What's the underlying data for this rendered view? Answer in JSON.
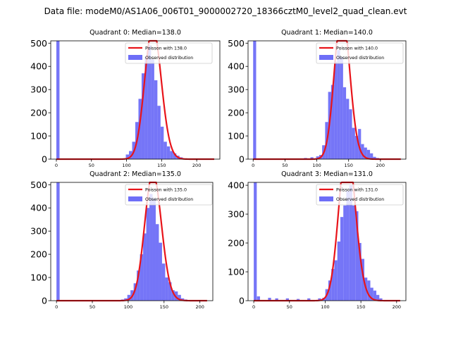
{
  "suptitle": "Data file: modeM0/AS1A06_006T01_9000002720_18366cztM0_level2_quad_clean.evt",
  "colors": {
    "histogram": "#6e6ef7",
    "poisson": "#e8141a"
  },
  "chart_data": [
    {
      "type": "bar",
      "title": "Quadrant 0: Median=138.0",
      "median": 138.0,
      "xlim": [
        -8,
        233
      ],
      "ylim": [
        0,
        510
      ],
      "xticks": [
        0,
        50,
        100,
        150,
        200
      ],
      "yticks": [
        0,
        100,
        200,
        300,
        400,
        500
      ],
      "legend": {
        "position": "top-right",
        "poisson_label": "Poisson with 138.0",
        "hist_label": "Observed distribution"
      },
      "bin_width": 4.5,
      "bins_left": [
        0,
        99,
        103.5,
        108,
        112.5,
        117,
        121.5,
        126,
        130.5,
        135,
        139.5,
        144,
        148.5,
        153,
        157.5,
        162,
        166.5,
        171,
        175.5,
        180
      ],
      "counts": [
        515,
        20,
        35,
        75,
        160,
        260,
        370,
        440,
        490,
        430,
        340,
        230,
        140,
        75,
        55,
        35,
        25,
        15,
        8,
        3
      ]
    },
    {
      "type": "bar",
      "title": "Quadrant 1: Median=140.0",
      "median": 140.0,
      "xlim": [
        -8,
        240
      ],
      "ylim": [
        0,
        510
      ],
      "xticks": [
        0,
        50,
        100,
        150,
        200
      ],
      "yticks": [
        0,
        100,
        200,
        300,
        400,
        500
      ],
      "legend": {
        "position": "top-right",
        "poisson_label": "Poisson with 140.0",
        "hist_label": "Observed distribution"
      },
      "bin_width": 4.7,
      "bins_left": [
        0,
        80,
        90,
        99,
        103.7,
        108.4,
        113.1,
        117.8,
        122.5,
        127.2,
        131.9,
        136.6,
        141.3,
        146,
        150.7,
        155.4,
        160.1,
        164.8,
        169.5,
        174.2,
        178.9,
        183.6,
        188.3,
        193
      ],
      "counts": [
        515,
        5,
        8,
        12,
        18,
        60,
        160,
        290,
        320,
        420,
        470,
        440,
        310,
        260,
        215,
        135,
        100,
        130,
        65,
        50,
        40,
        25,
        10,
        5
      ]
    },
    {
      "type": "bar",
      "title": "Quadrant 2: Median=135.0",
      "median": 135.0,
      "xlim": [
        -8,
        218
      ],
      "ylim": [
        0,
        510
      ],
      "xticks": [
        0,
        50,
        100,
        150,
        200
      ],
      "yticks": [
        0,
        100,
        200,
        300,
        400,
        500
      ],
      "legend": {
        "position": "top-right",
        "poisson_label": "Poisson with 135.0",
        "hist_label": "Observed distribution"
      },
      "bin_width": 4.4,
      "bins_left": [
        0,
        90,
        94.4,
        98.8,
        103.2,
        107.6,
        112,
        116.4,
        120.8,
        125.2,
        129.6,
        134,
        138.4,
        142.8,
        147.2,
        151.6,
        156,
        160.4,
        164.8,
        169.2,
        173.6,
        178
      ],
      "counts": [
        515,
        5,
        10,
        25,
        45,
        75,
        130,
        200,
        290,
        400,
        460,
        440,
        330,
        250,
        160,
        100,
        80,
        45,
        40,
        25,
        10,
        5
      ]
    },
    {
      "type": "bar",
      "title": "Quadrant 3: Median=131.0",
      "median": 131.0,
      "xlim": [
        -8,
        213
      ],
      "ylim": [
        0,
        410
      ],
      "xticks": [
        0,
        50,
        100,
        150,
        200
      ],
      "yticks": [
        0,
        100,
        200,
        300,
        400
      ],
      "legend": {
        "position": "top-right",
        "poisson_label": "Poisson with 131.0",
        "hist_label": "Observed distribution"
      },
      "bin_width": 4.2,
      "bins_left": [
        0,
        4.5,
        20,
        30,
        45,
        60,
        75,
        90,
        96,
        100.2,
        104.4,
        108.6,
        112.8,
        117,
        121.2,
        125.4,
        129.6,
        133.8,
        138,
        142.2,
        146.4,
        150.6,
        154.8,
        159,
        163.2,
        167.4,
        171.6,
        175.8
      ],
      "counts": [
        415,
        15,
        10,
        8,
        8,
        6,
        8,
        8,
        10,
        40,
        70,
        110,
        140,
        205,
        290,
        330,
        380,
        400,
        330,
        310,
        200,
        145,
        80,
        70,
        45,
        35,
        20,
        8
      ]
    }
  ]
}
